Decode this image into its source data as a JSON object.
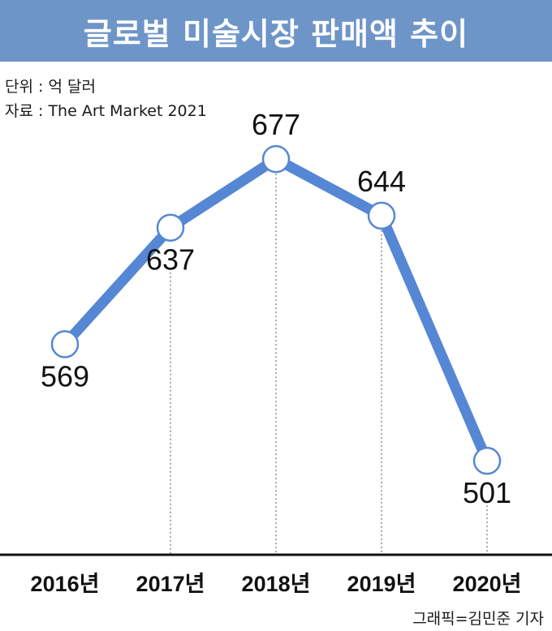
{
  "title": "글로벌 미술시장 판매액 추이",
  "unit_note": "단위 : 억 달러",
  "source_note": "자료 : The Art Market 2021",
  "credit": "그래픽=김민준 기자",
  "colors": {
    "title_bg": "#6e95c8",
    "line": "#5587d4",
    "axis": "#111111",
    "guide": "#555555"
  },
  "chart_data": {
    "type": "line",
    "categories": [
      "2016년",
      "2017년",
      "2018년",
      "2019년",
      "2020년"
    ],
    "series": [
      {
        "values": [
          569,
          637,
          677,
          644,
          501
        ]
      }
    ],
    "value_labels": [
      "569",
      "637",
      "677",
      "644",
      "501"
    ],
    "ylim": [
      485,
      687
    ],
    "grid": false,
    "legend": "none"
  }
}
